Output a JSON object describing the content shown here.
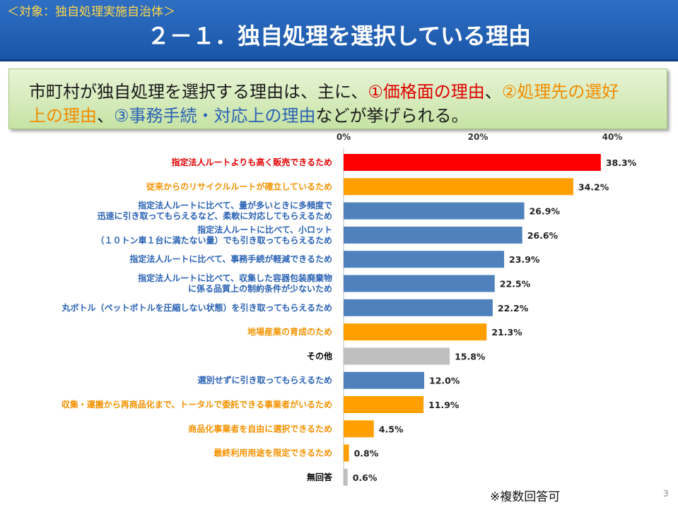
{
  "header": {
    "subtitle": "＜対象：独自処理実施自治体＞",
    "title": "２－１．独自処理を選択している理由"
  },
  "summary": {
    "line1_a": "市町村が独自処理を選択する理由は、主に、",
    "line1_b": "①価格面の理由",
    "line1_c": "、",
    "line1_d": "②処理先の選好",
    "line2_a": "上の理由",
    "line2_b": "、",
    "line2_c": "③事務手続・対応上の理由",
    "line2_d": "などが挙げられる。"
  },
  "note": "※複数回答可",
  "page_number": "3",
  "colors": {
    "red": "#ff0000",
    "orange": "#ffa000",
    "blue": "#4f81bd",
    "gray": "#bfbfbf"
  },
  "chart_data": {
    "type": "bar",
    "orientation": "horizontal",
    "xlim": [
      0,
      40
    ],
    "ticks": [
      "0%",
      "20%",
      "40%"
    ],
    "tick_values": [
      0,
      20,
      40
    ],
    "grid": false,
    "items": [
      {
        "label": [
          "指定法人ルートよりも高く販売できるため"
        ],
        "value": 38.3,
        "value_label": "38.3%",
        "color": "red"
      },
      {
        "label": [
          "従来からのリサイクルルートが確立しているため"
        ],
        "value": 34.2,
        "value_label": "34.2%",
        "color": "orange"
      },
      {
        "label": [
          "指定法人ルートに比べて、量が多いときに多頻度で",
          "迅速に引き取ってもらえるなど、柔軟に対応してもらえるため"
        ],
        "value": 26.9,
        "value_label": "26.9%",
        "color": "blue"
      },
      {
        "label": [
          "指定法人ルートに比べて、小ロット",
          "（１０トン車１台に満たない量）でも引き取ってもらえるため"
        ],
        "value": 26.6,
        "value_label": "26.6%",
        "color": "blue"
      },
      {
        "label": [
          "指定法人ルートに比べて、事務手続が軽減できるため"
        ],
        "value": 23.9,
        "value_label": "23.9%",
        "color": "blue"
      },
      {
        "label": [
          "指定法人ルートに比べて、収集した容器包装廃棄物",
          "に係る品質上の制約条件が少ないため"
        ],
        "value": 22.5,
        "value_label": "22.5%",
        "color": "blue"
      },
      {
        "label": [
          "丸ボトル（ペットボトルを圧縮しない状態）を引き取ってもらえるため"
        ],
        "value": 22.2,
        "value_label": "22.2%",
        "color": "blue"
      },
      {
        "label": [
          "地場産業の育成のため"
        ],
        "value": 21.3,
        "value_label": "21.3%",
        "color": "orange"
      },
      {
        "label": [
          "その他"
        ],
        "value": 15.8,
        "value_label": "15.8%",
        "color": "gray"
      },
      {
        "label": [
          "選別せずに引き取ってもらえるため"
        ],
        "value": 12.0,
        "value_label": "12.0%",
        "color": "blue"
      },
      {
        "label": [
          "収集・運搬から再商品化まで、トータルで委託できる事業者がいるため"
        ],
        "value": 11.9,
        "value_label": "11.9%",
        "color": "orange"
      },
      {
        "label": [
          "商品化事業者を自由に選択できるため"
        ],
        "value": 4.5,
        "value_label": "4.5%",
        "color": "orange"
      },
      {
        "label": [
          "最終利用用途を限定できるため"
        ],
        "value": 0.8,
        "value_label": "0.8%",
        "color": "orange"
      },
      {
        "label": [
          "無回答"
        ],
        "value": 0.6,
        "value_label": "0.6%",
        "color": "gray"
      }
    ]
  }
}
